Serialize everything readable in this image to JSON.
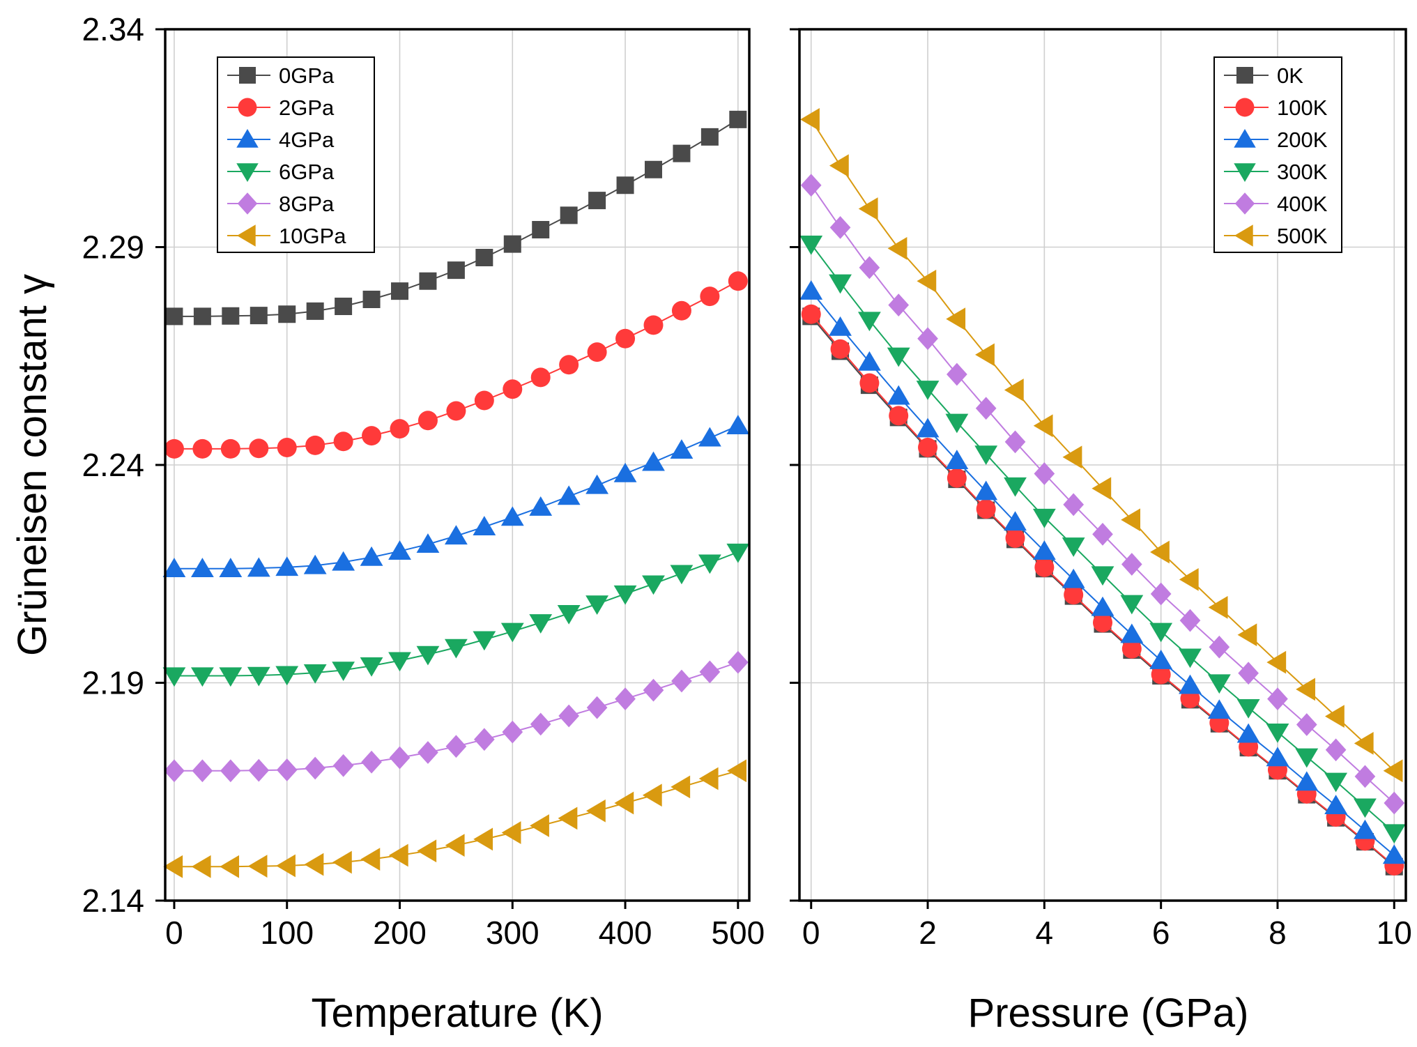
{
  "chart_data": [
    {
      "type": "line",
      "panel": "left",
      "xlabel": "Temperature (K)",
      "ylabel": "Grüneisen constant γ",
      "xlim": [
        -8,
        510
      ],
      "ylim": [
        2.14,
        2.34
      ],
      "xticks": [
        0,
        100,
        200,
        300,
        400,
        500
      ],
      "yticks": [
        2.14,
        2.19,
        2.24,
        2.29,
        2.34
      ],
      "ytick_labels": [
        "2.14",
        "2.19",
        "2.24",
        "2.29",
        "2.34"
      ],
      "grid": true,
      "legend_position": "top-left",
      "x": [
        0,
        25,
        50,
        75,
        100,
        125,
        150,
        175,
        200,
        225,
        250,
        275,
        300,
        325,
        350,
        375,
        400,
        425,
        450,
        475,
        500
      ],
      "series": [
        {
          "name": "0GPa",
          "color": "#4a4a4a",
          "marker": "square",
          "values": [
            2.2741,
            2.2741,
            2.2742,
            2.2743,
            2.2746,
            2.2753,
            2.2764,
            2.278,
            2.2799,
            2.2822,
            2.2847,
            2.2876,
            2.2907,
            2.294,
            2.2973,
            2.3007,
            2.3042,
            2.3078,
            2.3115,
            2.3153,
            2.3193
          ]
        },
        {
          "name": "2GPa",
          "color": "#ff3a3a",
          "marker": "circle",
          "values": [
            2.2437,
            2.2437,
            2.2437,
            2.2438,
            2.244,
            2.2445,
            2.2454,
            2.2467,
            2.2483,
            2.2502,
            2.2524,
            2.2548,
            2.2574,
            2.2601,
            2.263,
            2.2659,
            2.269,
            2.2721,
            2.2754,
            2.2787,
            2.2822
          ]
        },
        {
          "name": "4GPa",
          "color": "#1a6fe0",
          "marker": "triangle-up",
          "values": [
            2.2162,
            2.2162,
            2.2162,
            2.2163,
            2.2165,
            2.2169,
            2.2177,
            2.2188,
            2.2202,
            2.2218,
            2.2237,
            2.2258,
            2.228,
            2.2303,
            2.2328,
            2.2353,
            2.238,
            2.2406,
            2.2434,
            2.2462,
            2.249
          ]
        },
        {
          "name": "6GPa",
          "color": "#1aa860",
          "marker": "triangle-down",
          "values": [
            2.1916,
            2.1916,
            2.1916,
            2.1917,
            2.1919,
            2.1923,
            2.1929,
            2.1939,
            2.1951,
            2.1965,
            2.1981,
            2.1999,
            2.2018,
            2.2038,
            2.2059,
            2.2081,
            2.2104,
            2.2127,
            2.2151,
            2.2175,
            2.22
          ]
        },
        {
          "name": "8GPa",
          "color": "#c07ce0",
          "marker": "diamond",
          "values": [
            2.1698,
            2.1698,
            2.1698,
            2.1699,
            2.17,
            2.1704,
            2.171,
            2.1718,
            2.1728,
            2.174,
            2.1754,
            2.177,
            2.1787,
            2.1805,
            2.1824,
            2.1843,
            2.1863,
            2.1883,
            2.1904,
            2.1925,
            2.1947
          ]
        },
        {
          "name": "10GPa",
          "color": "#d99a10",
          "marker": "triangle-left",
          "values": [
            2.1478,
            2.1478,
            2.1478,
            2.1479,
            2.148,
            2.1483,
            2.1488,
            2.1495,
            2.1504,
            2.1514,
            2.1527,
            2.1541,
            2.1556,
            2.1572,
            2.1589,
            2.1606,
            2.1624,
            2.1642,
            2.1661,
            2.168,
            2.1698
          ]
        }
      ]
    },
    {
      "type": "line",
      "panel": "right",
      "xlabel": "Pressure (GPa)",
      "ylabel": "",
      "xlim": [
        -0.2,
        10.2
      ],
      "ylim": [
        2.14,
        2.34
      ],
      "xticks": [
        0,
        2,
        4,
        6,
        8,
        10
      ],
      "yticks": [
        2.14,
        2.19,
        2.24,
        2.29,
        2.34
      ],
      "grid": true,
      "legend_position": "top-right",
      "x": [
        0,
        0.5,
        1,
        1.5,
        2,
        2.5,
        3,
        3.5,
        4,
        4.5,
        5,
        5.5,
        6,
        6.5,
        7,
        7.5,
        8,
        8.5,
        9,
        9.5,
        10
      ],
      "series": [
        {
          "name": "0K",
          "color": "#4a4a4a",
          "marker": "square",
          "values": [
            2.2741,
            2.2661,
            2.2583,
            2.2509,
            2.2437,
            2.2367,
            2.2296,
            2.2229,
            2.2162,
            2.2099,
            2.2035,
            2.1975,
            2.1916,
            2.1861,
            2.1806,
            2.1751,
            2.1698,
            2.1643,
            2.159,
            2.1535,
            2.1478
          ]
        },
        {
          "name": "100K",
          "color": "#ff3a3a",
          "marker": "circle",
          "values": [
            2.2746,
            2.2666,
            2.2588,
            2.2513,
            2.244,
            2.237,
            2.2299,
            2.2232,
            2.2165,
            2.2102,
            2.2038,
            2.1978,
            2.1919,
            2.1864,
            2.1808,
            2.1753,
            2.17,
            2.1645,
            2.1592,
            2.1537,
            2.148
          ]
        },
        {
          "name": "200K",
          "color": "#1a6fe0",
          "marker": "triangle-up",
          "values": [
            2.2799,
            2.2716,
            2.2636,
            2.2558,
            2.2483,
            2.241,
            2.2339,
            2.2269,
            2.2202,
            2.2137,
            2.2073,
            2.2011,
            2.1951,
            2.1894,
            2.1837,
            2.1782,
            2.1728,
            2.1672,
            2.1618,
            2.1561,
            2.1504
          ]
        },
        {
          "name": "300K",
          "color": "#1aa860",
          "marker": "triangle-down",
          "values": [
            2.2907,
            2.2818,
            2.2732,
            2.265,
            2.2574,
            2.2498,
            2.2425,
            2.2352,
            2.228,
            2.2214,
            2.2148,
            2.2082,
            2.2018,
            2.1959,
            2.19,
            2.1843,
            2.1787,
            2.173,
            2.1674,
            2.1615,
            2.1556
          ]
        },
        {
          "name": "400K",
          "color": "#c07ce0",
          "marker": "diamond",
          "values": [
            2.3042,
            2.2945,
            2.2853,
            2.2767,
            2.269,
            2.2608,
            2.253,
            2.2453,
            2.238,
            2.2309,
            2.2241,
            2.2172,
            2.2104,
            2.2043,
            2.1982,
            2.1922,
            2.1863,
            2.1804,
            2.1746,
            2.1685,
            2.1624
          ]
        },
        {
          "name": "500K",
          "color": "#d99a10",
          "marker": "triangle-left",
          "values": [
            2.3193,
            2.3087,
            2.2988,
            2.2897,
            2.2822,
            2.2735,
            2.2653,
            2.2572,
            2.249,
            2.2418,
            2.2346,
            2.2274,
            2.22,
            2.2137,
            2.2073,
            2.201,
            2.1947,
            2.1885,
            2.1823,
            2.1761,
            2.1698
          ]
        }
      ]
    }
  ]
}
